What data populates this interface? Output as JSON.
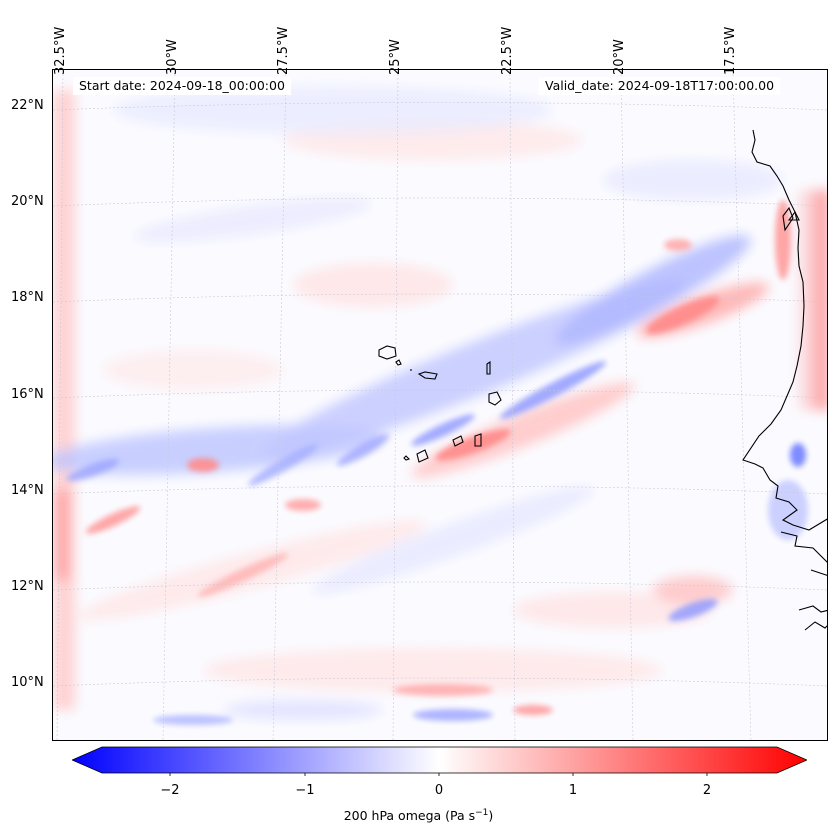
{
  "header": {
    "start_date": "Start date: 2024-09-18_00:00:00",
    "valid_date": "Valid_date: 2024-09-18T17:00:00.00"
  },
  "axes": {
    "longitude_labels": [
      "32.5°W",
      "30°W",
      "27.5°W",
      "25°W",
      "22.5°W",
      "20°W",
      "17.5°W"
    ],
    "latitude_labels": [
      "22°N",
      "20°N",
      "18°N",
      "16°N",
      "14°N",
      "12°N",
      "10°N"
    ]
  },
  "colorbar": {
    "ticks": [
      "−2",
      "−1",
      "0",
      "1",
      "2"
    ],
    "label": "200 hPa omega (Pa s",
    "label_sup": "−1",
    "label_end": ")",
    "min_color": "#0000ff",
    "mid_color": "#ffffff",
    "max_color": "#ff0000"
  },
  "map": {
    "background_color": "#fbfbff",
    "coast_color": "#000000",
    "grid_color": "#c8c8d8"
  }
}
